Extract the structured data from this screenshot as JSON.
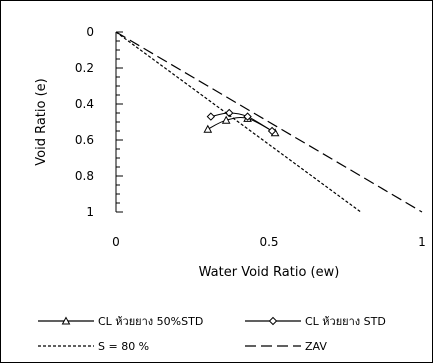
{
  "chart_data": {
    "type": "scatter",
    "title": "",
    "xlabel": "Water Void Ratio (ew)",
    "ylabel": "Void Ratio (e)",
    "xlim": [
      0,
      1
    ],
    "ylim": [
      0,
      1
    ],
    "y_inverted": true,
    "x_ticks": [
      "0",
      "0.5",
      "1"
    ],
    "y_ticks": [
      "0",
      "0.2",
      "0.4",
      "0.6",
      "0.8",
      "1"
    ],
    "grid": false,
    "legend_position": "bottom",
    "series": [
      {
        "name": "CL ห้วยยาง 50%STD",
        "marker": "triangle",
        "line": "solid",
        "color": "#000000",
        "x": [
          0.3,
          0.36,
          0.43,
          0.52
        ],
        "y": [
          0.54,
          0.49,
          0.48,
          0.56
        ]
      },
      {
        "name": "CL ห้วยยาง STD",
        "marker": "diamond",
        "line": "solid",
        "color": "#000000",
        "x": [
          0.31,
          0.37,
          0.43,
          0.51
        ],
        "y": [
          0.47,
          0.45,
          0.47,
          0.55
        ]
      },
      {
        "name": "S = 80 %",
        "line": "short-dash",
        "color": "#000000",
        "x": [
          0,
          0.8
        ],
        "y": [
          0,
          1
        ]
      },
      {
        "name": "ZAV",
        "line": "long-dash",
        "color": "#000000",
        "x": [
          0,
          1
        ],
        "y": [
          0,
          1
        ]
      }
    ]
  }
}
